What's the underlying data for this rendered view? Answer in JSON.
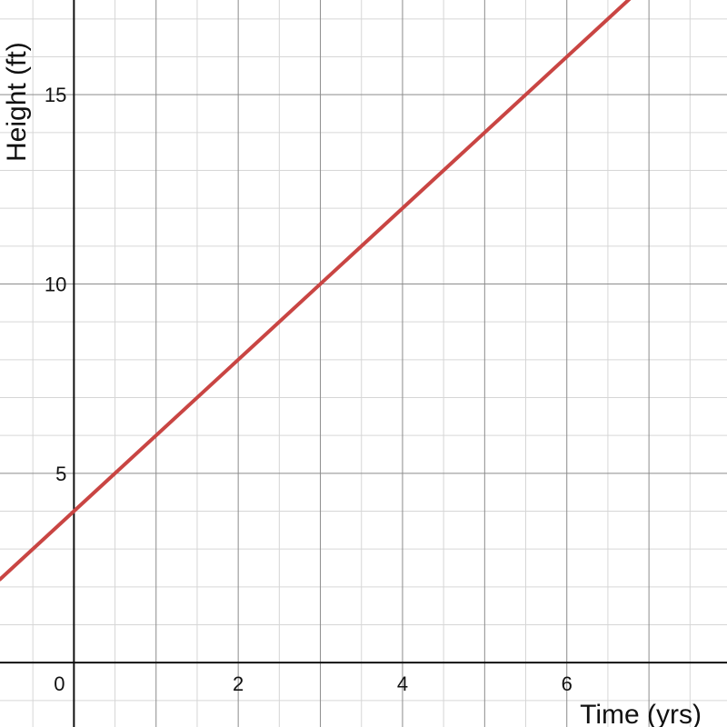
{
  "chart_data": {
    "type": "line",
    "title": "",
    "xlabel": "Time (yrs)",
    "ylabel": "Height (ft)",
    "xlim": [
      -0.9,
      7.95
    ],
    "ylim": [
      -1.7,
      17.5
    ],
    "x_ticks": [
      0,
      2,
      4,
      6
    ],
    "y_ticks": [
      5,
      10,
      15
    ],
    "x_tick_labels": [
      "0",
      "2",
      "4",
      "6"
    ],
    "y_tick_labels": [
      "5",
      "10",
      "15"
    ],
    "grid": true,
    "minor_step_x": 0.5,
    "minor_step_y": 1,
    "major_step_x": 1,
    "major_step_y": 5,
    "series": [
      {
        "color": "#c94543",
        "x": [
          -0.9,
          6.9
        ],
        "y": [
          2.2,
          17.8
        ]
      }
    ]
  }
}
